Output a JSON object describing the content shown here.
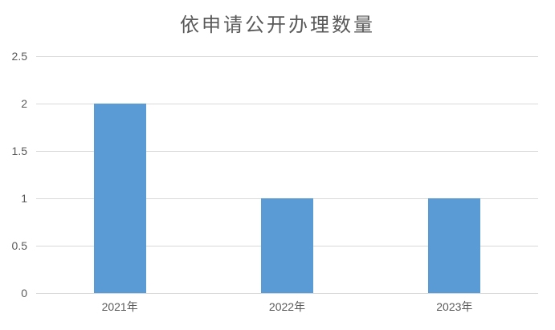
{
  "chart_data": {
    "type": "bar",
    "title": "依申请公开办理数量",
    "categories": [
      "2021年",
      "2022年",
      "2023年"
    ],
    "values": [
      2,
      1,
      1
    ],
    "xlabel": "",
    "ylabel": "",
    "ylim": [
      0,
      2.5
    ],
    "yticks": [
      0,
      0.5,
      1,
      1.5,
      2,
      2.5
    ],
    "grid": true,
    "legend": "none",
    "colors": {
      "bar": "#5B9BD5",
      "gridline": "#D9D9D9",
      "text": "#595959",
      "background": "#FFFFFF"
    }
  }
}
